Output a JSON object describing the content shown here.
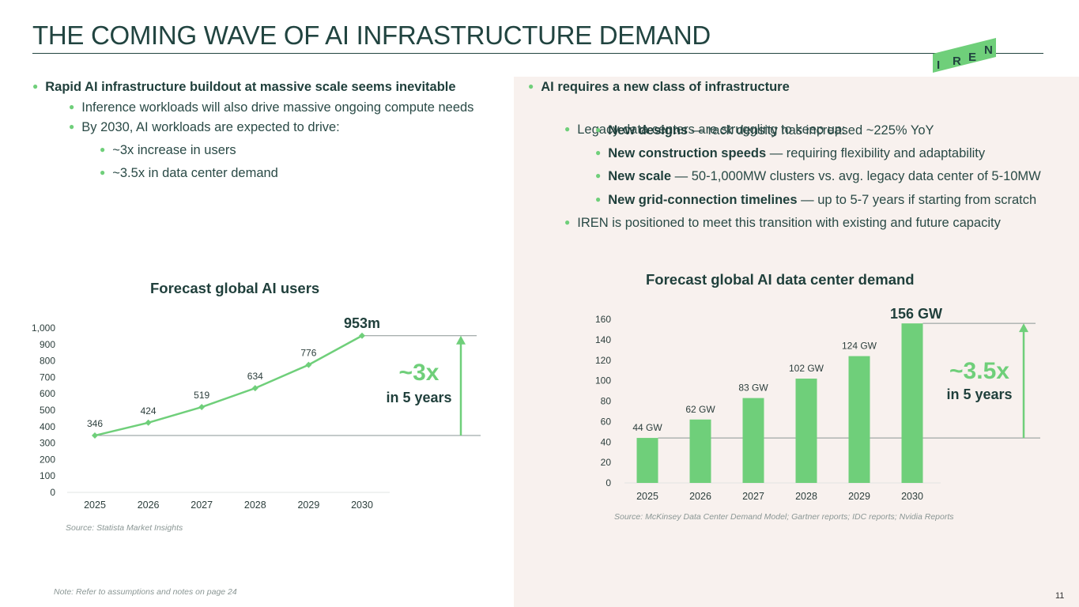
{
  "header": {
    "title": "THE COMING WAVE OF AI INFRASTRUCTURE DEMAND",
    "logo_letters": [
      "I",
      "R",
      "E",
      "N"
    ]
  },
  "colors": {
    "accent_green": "#6fcf7a",
    "dark_teal": "#214440",
    "panel_bg": "#f8f1ee",
    "logo_bg": "#6fcf7a"
  },
  "left_bullets": {
    "main": "Rapid AI infrastructure buildout at massive scale seems inevitable",
    "sub1": "Inference workloads will also drive massive ongoing compute needs",
    "sub2": "By 2030, AI workloads are expected to drive:",
    "subsub1": "~3x increase in users",
    "subsub2": "~3.5x in data center demand"
  },
  "right_bullets": {
    "main": "AI requires a new class of infrastructure",
    "sub1": "Legacy data centers are struggling to keep up:",
    "items": [
      {
        "bold": "New designs",
        "rest": " — rack density has increased ~225% YoY"
      },
      {
        "bold": "New construction speeds",
        "rest": " — requiring flexibility and adaptability"
      },
      {
        "bold": "New scale",
        "rest": " — 50-1,000MW clusters vs. avg. legacy data center of 5-10MW"
      },
      {
        "bold": "New grid-connection timelines",
        "rest": " — up to 5-7 years if starting from scratch"
      }
    ],
    "sub2": "IREN is positioned to meet this transition with existing and future capacity"
  },
  "chart_data": [
    {
      "type": "line",
      "title": "Forecast global AI users",
      "categories": [
        "2025",
        "2026",
        "2027",
        "2028",
        "2029",
        "2030"
      ],
      "values": [
        346,
        424,
        519,
        634,
        776,
        953
      ],
      "data_labels": [
        "346",
        "424",
        "519",
        "634",
        "776",
        "953m"
      ],
      "yticks": [
        "0",
        "100",
        "200",
        "300",
        "400",
        "500",
        "600",
        "700",
        "800",
        "900",
        "1,000"
      ],
      "ylim": [
        0,
        1000
      ],
      "multiplier": "~3x",
      "multiplier_sub": "in 5 years",
      "source": "Source: Statista Market Insights"
    },
    {
      "type": "bar",
      "title": "Forecast global AI data center demand",
      "categories": [
        "2025",
        "2026",
        "2027",
        "2028",
        "2029",
        "2030"
      ],
      "values": [
        44,
        62,
        83,
        102,
        124,
        156
      ],
      "data_labels": [
        "44 GW",
        "62 GW",
        "83 GW",
        "102 GW",
        "124 GW",
        "156 GW"
      ],
      "yticks": [
        "0",
        "20",
        "40",
        "60",
        "80",
        "100",
        "120",
        "140",
        "160"
      ],
      "ylim": [
        0,
        160
      ],
      "multiplier": "~3.5x",
      "multiplier_sub": "in 5 years",
      "source": "Source: McKinsey Data Center Demand Model; Gartner reports; IDC reports; Nvidia Reports"
    }
  ],
  "footer": {
    "note": "Note: Refer to assumptions and notes on page 24",
    "page_number": "11"
  }
}
